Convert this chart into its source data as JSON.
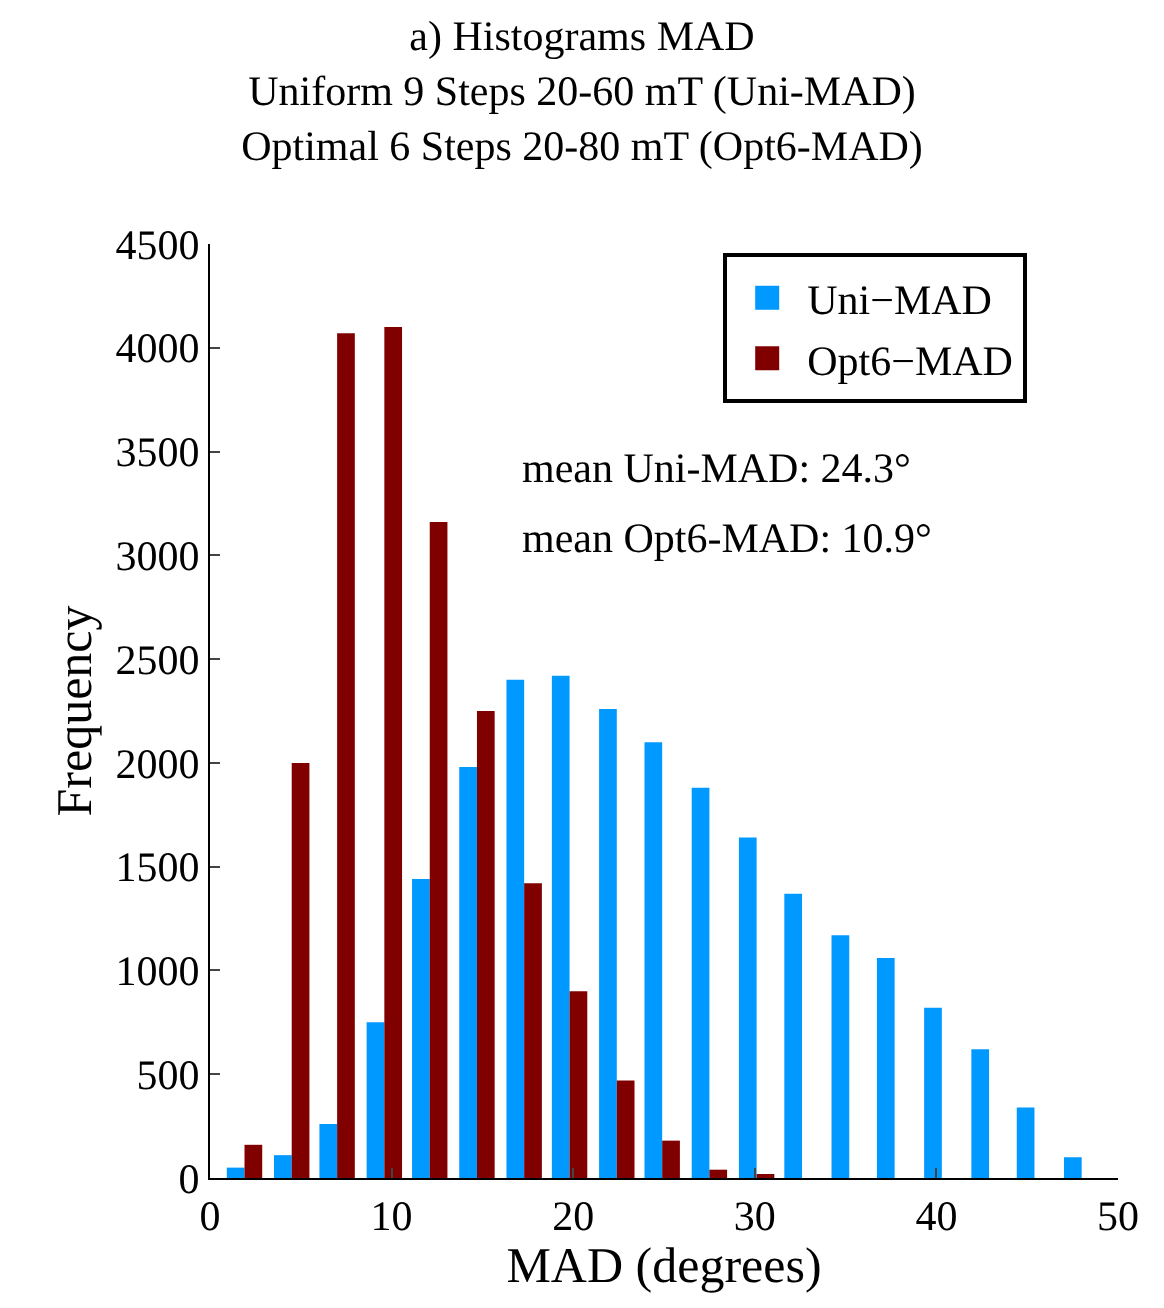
{
  "chart_data": {
    "type": "bar",
    "title": "a) Histograms MAD\nUniform 9 Steps 20-60 mT (Uni-MAD)\nOptimal 6 Steps 20-80 mT (Opt6-MAD)",
    "xlabel": "MAD (degrees)",
    "ylabel": "Frequency",
    "x": [
      1.9,
      4.5,
      7.0,
      9.6,
      12.1,
      14.7,
      17.3,
      19.8,
      22.4,
      24.9,
      27.5,
      30.1,
      32.6,
      35.2,
      37.7,
      40.3,
      42.9,
      45.4,
      48.0
    ],
    "series": [
      {
        "name": "Uni−MAD",
        "color": "#0099ff",
        "values": [
          50,
          110,
          260,
          750,
          1440,
          1980,
          2400,
          2420,
          2260,
          2100,
          1880,
          1640,
          1370,
          1170,
          1060,
          820,
          620,
          340,
          100
        ]
      },
      {
        "name": "Opt6−MAD",
        "color": "#800000",
        "values": [
          160,
          2000,
          4070,
          4100,
          3160,
          2250,
          1420,
          900,
          470,
          180,
          40,
          10,
          0,
          0,
          0,
          0,
          0,
          0,
          0
        ]
      }
    ],
    "annotations": [
      "mean Uni-MAD: 24.3°",
      "mean Opt6-MAD: 10.9°"
    ],
    "xlim": [
      0,
      50
    ],
    "xticks": [
      0,
      10,
      20,
      30,
      40,
      50
    ],
    "ylim": [
      0,
      4500
    ],
    "yticks": [
      0,
      500,
      1000,
      1500,
      2000,
      2500,
      3000,
      3500,
      4000,
      4500
    ],
    "legend": "top right"
  }
}
